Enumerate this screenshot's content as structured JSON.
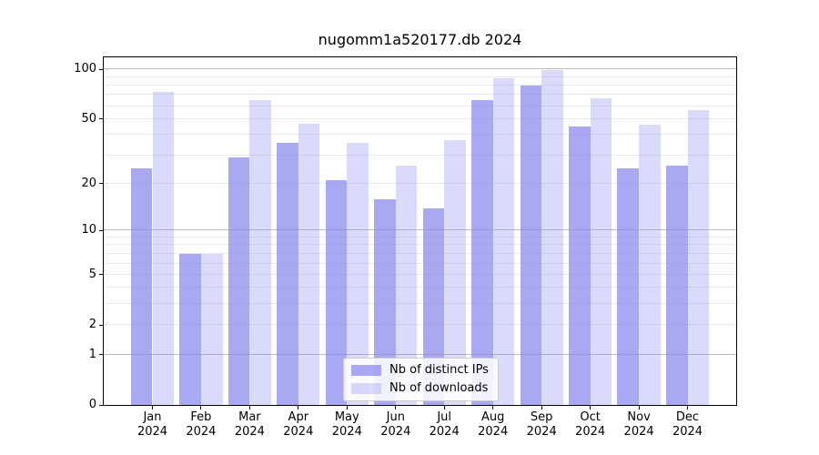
{
  "title": "nugomm1a520177.db 2024",
  "chart_data": {
    "type": "bar",
    "title": "nugomm1a520177.db 2024",
    "xlabel": "",
    "ylabel": "",
    "categories": [
      "Jan",
      "Feb",
      "Mar",
      "Apr",
      "May",
      "Jun",
      "Jul",
      "Aug",
      "Sep",
      "Oct",
      "Nov",
      "Dec"
    ],
    "category_year": "2024",
    "series": [
      {
        "name": "Nb of distinct IPs",
        "color": "#8888ee",
        "alpha": 0.72,
        "values": [
          25,
          7,
          29,
          36,
          21,
          16,
          14,
          65,
          80,
          45,
          25,
          26
        ]
      },
      {
        "name": "Nb of downloads",
        "color": "#8888ee",
        "alpha": 0.31,
        "values": [
          73,
          7,
          65,
          47,
          36,
          26,
          37,
          88,
          99,
          67,
          46,
          57
        ]
      }
    ],
    "yscale": "log1p",
    "ylim": [
      0,
      118
    ],
    "y_ticks": [
      0,
      1,
      2,
      5,
      10,
      20,
      50,
      100
    ],
    "grid_major": [
      1,
      10,
      100
    ],
    "grid_minor": [
      2,
      3,
      4,
      5,
      6,
      7,
      8,
      9,
      20,
      30,
      40,
      50,
      60,
      70,
      80,
      90
    ],
    "grid": "on",
    "legend_position": "lower center",
    "colors": {
      "grid_major": "#bdbdbd",
      "grid_minor": "#e9e9e9",
      "spine": "#000000",
      "background": "#ffffff"
    }
  }
}
